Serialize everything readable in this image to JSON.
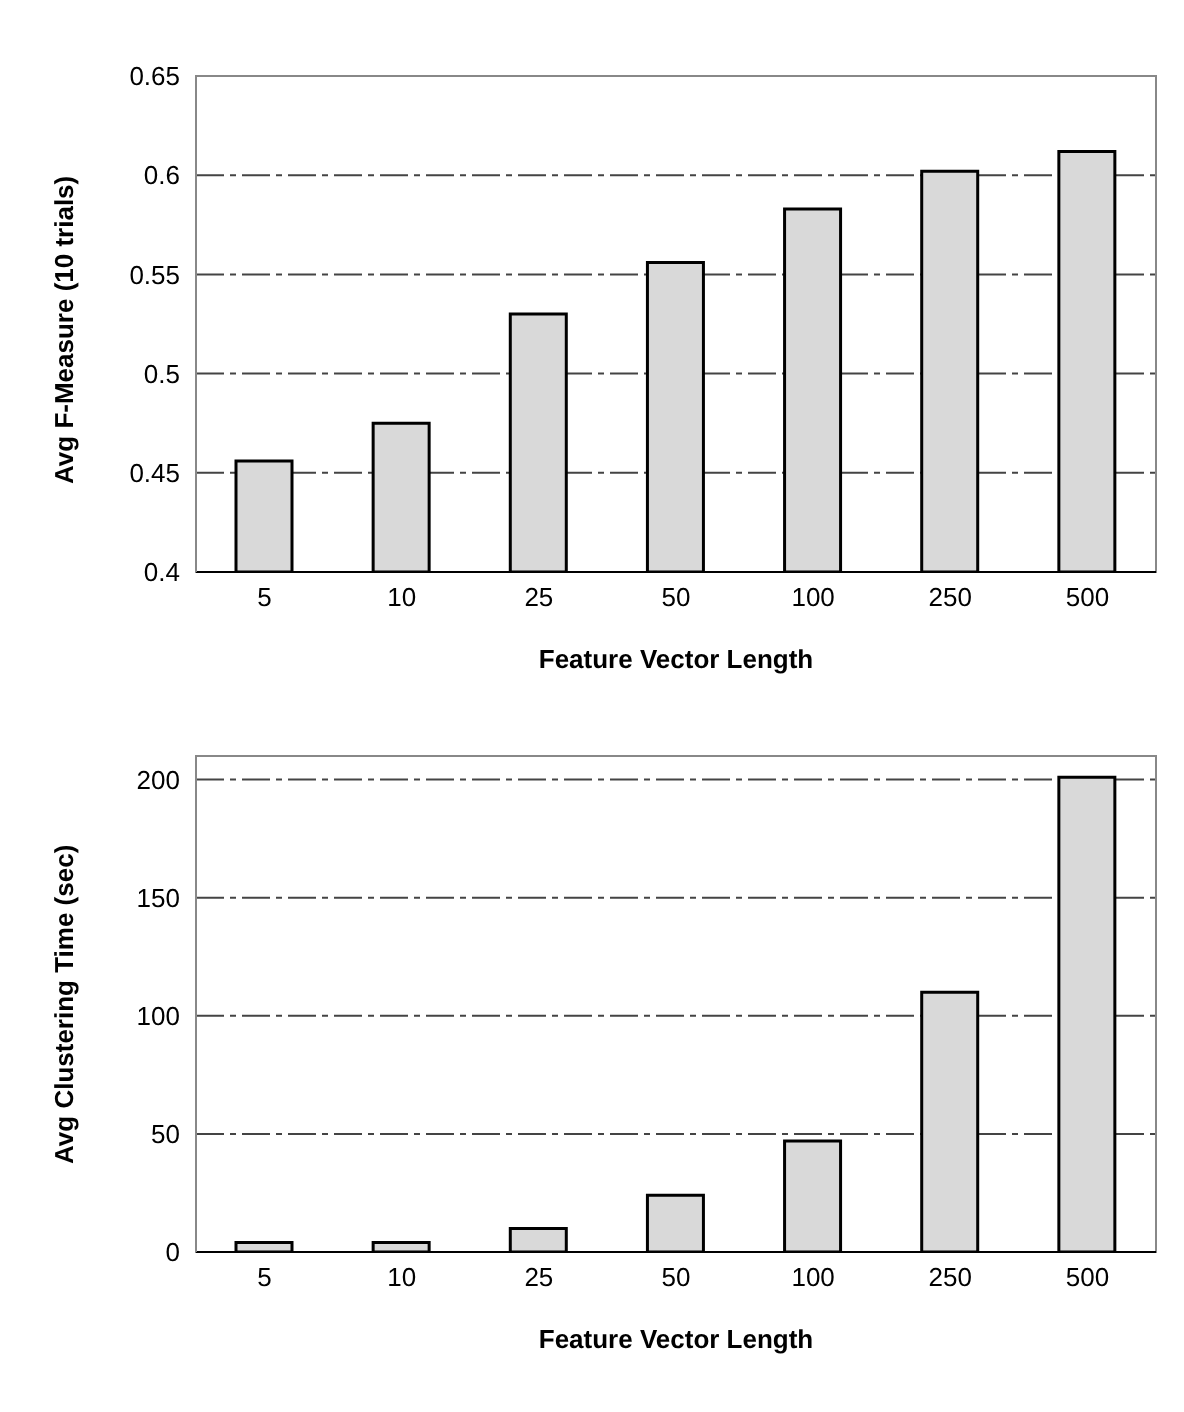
{
  "chart_data": [
    {
      "type": "bar",
      "xlabel": "Feature Vector Length",
      "ylabel": "Avg F-Measure (10 trials)",
      "categories": [
        "5",
        "10",
        "25",
        "50",
        "100",
        "250",
        "500"
      ],
      "values": [
        0.456,
        0.475,
        0.53,
        0.556,
        0.583,
        0.602,
        0.612
      ],
      "color": "#d9d9d9",
      "ylim": [
        0.4,
        0.65
      ],
      "yticks": [
        0.4,
        0.45,
        0.5,
        0.55,
        0.6,
        0.65
      ],
      "grid": "y"
    },
    {
      "type": "bar",
      "xlabel": "Feature Vector Length",
      "ylabel": "Avg Clustering Time (sec)",
      "categories": [
        "5",
        "10",
        "25",
        "50",
        "100",
        "250",
        "500"
      ],
      "values": [
        4,
        4,
        10,
        24,
        47,
        110,
        201
      ],
      "color": "#d9d9d9",
      "ylim": [
        0,
        210
      ],
      "yticks": [
        0,
        50,
        100,
        150,
        200
      ],
      "grid": "y"
    }
  ]
}
